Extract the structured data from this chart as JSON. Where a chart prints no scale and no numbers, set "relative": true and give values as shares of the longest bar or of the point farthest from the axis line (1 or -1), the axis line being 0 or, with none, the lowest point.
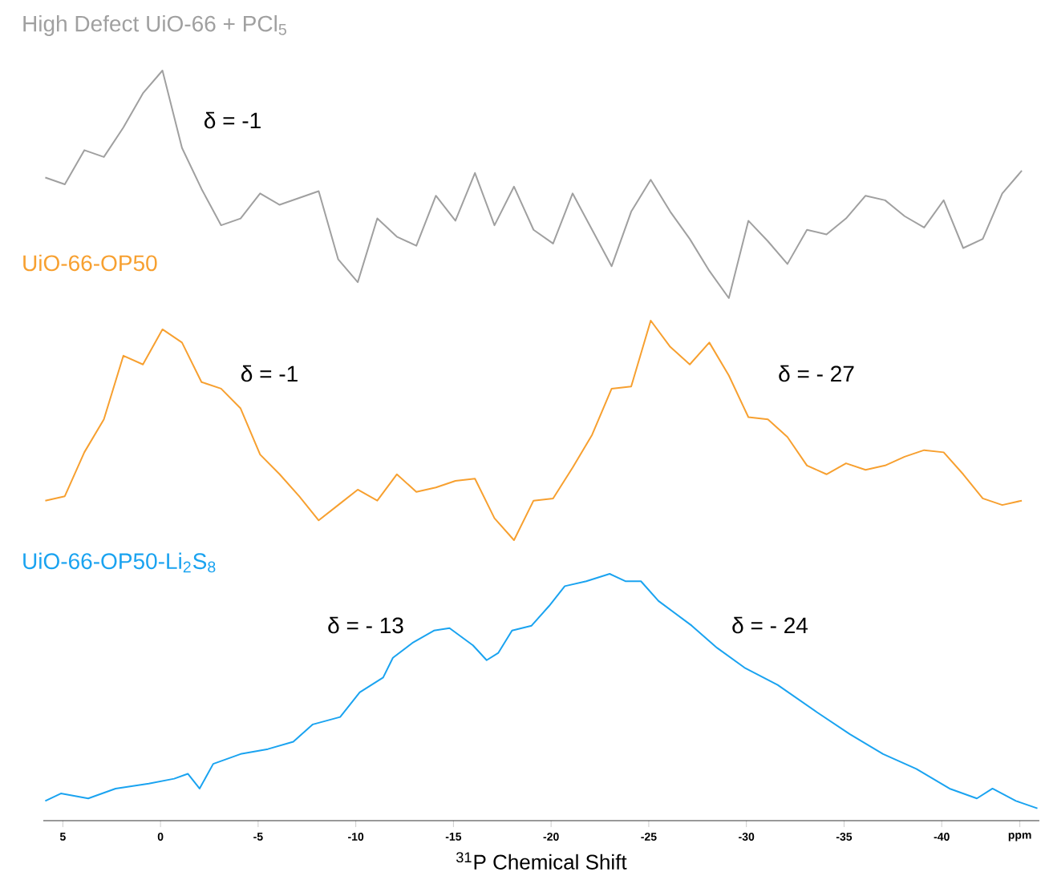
{
  "chart_data": [
    {
      "type": "line",
      "title": "High Defect UiO-66 + PCl$_{5}$",
      "color": "#a0a0a0",
      "relative": true,
      "tick_labels": false,
      "categories": [
        null,
        null,
        null,
        null,
        null,
        null,
        null,
        null,
        null,
        null,
        null,
        null,
        null,
        null,
        null,
        null,
        null,
        null,
        null,
        null,
        null,
        null,
        null,
        null,
        null,
        null,
        null,
        null,
        null,
        null,
        null,
        null,
        null,
        null,
        null,
        null,
        null,
        null,
        null,
        null,
        null,
        null,
        null,
        null,
        null,
        null,
        null,
        null,
        null,
        null,
        null
      ],
      "values": [
        0.53,
        0.5,
        0.65,
        0.62,
        0.75,
        0.9,
        1.0,
        0.66,
        0.48,
        0.32,
        0.35,
        0.46,
        0.41,
        0.44,
        0.47,
        0.17,
        0.07,
        0.35,
        0.27,
        0.23,
        0.45,
        0.34,
        0.55,
        0.32,
        0.49,
        0.3,
        0.24,
        0.46,
        0.3,
        0.14,
        0.38,
        0.52,
        0.38,
        0.26,
        0.12,
        0.0,
        0.34,
        0.25,
        0.15,
        0.3,
        0.28,
        0.35,
        0.45,
        0.43,
        0.36,
        0.31,
        0.43,
        0.22,
        0.26,
        0.46,
        0.56
      ],
      "annotations": [
        "δ = -1"
      ]
    },
    {
      "type": "line",
      "title": "UiO-66-OP50",
      "color": "#f7a030",
      "relative": true,
      "tick_labels": false,
      "categories": [
        null,
        null,
        null,
        null,
        null,
        null,
        null,
        null,
        null,
        null,
        null,
        null,
        null,
        null,
        null,
        null,
        null,
        null,
        null,
        null,
        null,
        null,
        null,
        null,
        null,
        null,
        null,
        null,
        null,
        null,
        null,
        null,
        null,
        null,
        null,
        null,
        null,
        null,
        null,
        null,
        null,
        null,
        null,
        null,
        null,
        null,
        null,
        null,
        null,
        null,
        null
      ],
      "values": [
        0.18,
        0.2,
        0.4,
        0.55,
        0.84,
        0.8,
        0.96,
        0.9,
        0.72,
        0.69,
        0.6,
        0.39,
        0.3,
        0.2,
        0.09,
        0.16,
        0.23,
        0.18,
        0.3,
        0.22,
        0.24,
        0.27,
        0.28,
        0.1,
        0.0,
        0.18,
        0.19,
        0.33,
        0.48,
        0.69,
        0.7,
        1.0,
        0.88,
        0.8,
        0.9,
        0.75,
        0.56,
        0.55,
        0.47,
        0.34,
        0.3,
        0.35,
        0.32,
        0.34,
        0.38,
        0.41,
        0.4,
        0.3,
        0.19,
        0.16,
        0.18
      ],
      "annotations": [
        "δ = -1",
        "δ = - 27"
      ]
    },
    {
      "type": "line",
      "title": "UiO-66-OP50-Li$_{2}$S$_{8}$",
      "color": "#1aa3f0",
      "relative": true,
      "xlim": [
        6,
        -45
      ],
      "tick_labels": "x",
      "xticks": [
        5,
        0,
        -5,
        -10,
        -15,
        -20,
        -25,
        -30,
        -35,
        -40,
        {
          "value": -44,
          "label": "ppm"
        }
      ],
      "xlabel": "$^{31}$P Chemical Shift",
      "x": [
        5.9,
        5.1,
        3.7,
        2.3,
        0.6,
        -0.7,
        -1.4,
        -2.0,
        -2.7,
        -4.1,
        -5.5,
        -6.8,
        -7.8,
        -9.2,
        -10.2,
        -11.4,
        -11.9,
        -12.9,
        -14.0,
        -14.8,
        -16.0,
        -16.7,
        -17.3,
        -18.0,
        -19.0,
        -19.9,
        -20.7,
        -21.8,
        -23.0,
        -23.8,
        -24.6,
        -25.5,
        -27.2,
        -28.5,
        -29.9,
        -31.6,
        -33.6,
        -35.3,
        -37.0,
        -38.7,
        -40.4,
        -41.8,
        -42.6,
        -43.8,
        -44.9
      ],
      "values": [
        0.08,
        0.11,
        0.09,
        0.13,
        0.15,
        0.17,
        0.19,
        0.13,
        0.23,
        0.27,
        0.29,
        0.32,
        0.39,
        0.42,
        0.52,
        0.58,
        0.66,
        0.72,
        0.77,
        0.78,
        0.71,
        0.65,
        0.68,
        0.77,
        0.79,
        0.87,
        0.95,
        0.97,
        1.0,
        0.97,
        0.97,
        0.89,
        0.79,
        0.7,
        0.62,
        0.55,
        0.44,
        0.35,
        0.27,
        0.21,
        0.13,
        0.09,
        0.13,
        0.08,
        0.05
      ],
      "annotations": [
        "δ = - 13",
        "δ = - 24"
      ]
    }
  ]
}
